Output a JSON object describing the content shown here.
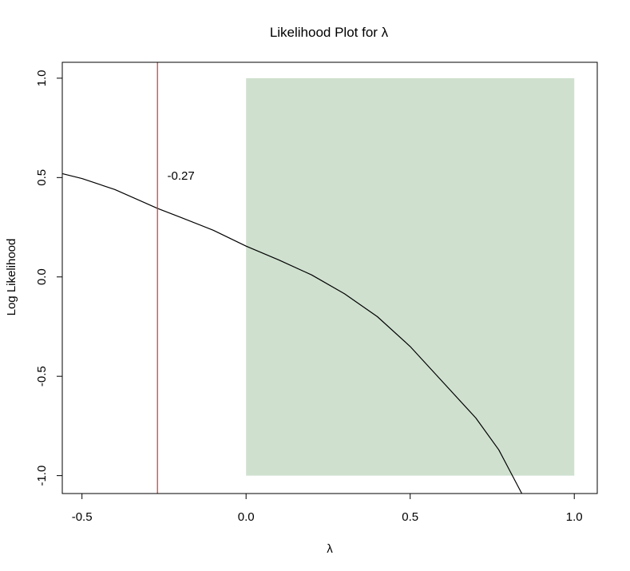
{
  "chart_data": {
    "type": "line",
    "title": "Likelihood Plot for λ",
    "xlabel": "λ",
    "ylabel": "Log Likelihood",
    "xlim": [
      -0.56,
      1.07
    ],
    "ylim": [
      -1.09,
      1.08
    ],
    "x_ticks": [
      "-0.5",
      "0.0",
      "0.5",
      "1.0"
    ],
    "y_ticks": [
      "-1.0",
      "-0.5",
      "0.0",
      "0.5",
      "1.0"
    ],
    "series": [
      {
        "values": [
          {
            "x": -0.56,
            "y": 0.52
          },
          {
            "x": -0.5,
            "y": 0.495
          },
          {
            "x": -0.4,
            "y": 0.44
          },
          {
            "x": -0.27,
            "y": 0.345
          },
          {
            "x": -0.2,
            "y": 0.3
          },
          {
            "x": -0.1,
            "y": 0.235
          },
          {
            "x": 0.0,
            "y": 0.155
          },
          {
            "x": 0.1,
            "y": 0.085
          },
          {
            "x": 0.2,
            "y": 0.01
          },
          {
            "x": 0.3,
            "y": -0.085
          },
          {
            "x": 0.4,
            "y": -0.2
          },
          {
            "x": 0.5,
            "y": -0.35
          },
          {
            "x": 0.6,
            "y": -0.53
          },
          {
            "x": 0.7,
            "y": -0.71
          },
          {
            "x": 0.77,
            "y": -0.87
          },
          {
            "x": 0.84,
            "y": -1.09
          }
        ],
        "color": "#000000"
      }
    ],
    "shaded_region": {
      "x": [
        0.0,
        1.0
      ],
      "y": [
        -1.0,
        1.0
      ],
      "color": "#cfe0cf"
    },
    "vline": {
      "x": -0.27,
      "color": "#cc3333"
    },
    "annotation": {
      "text": "-0.27",
      "x": -0.24,
      "y": 0.51
    },
    "grid": false
  }
}
